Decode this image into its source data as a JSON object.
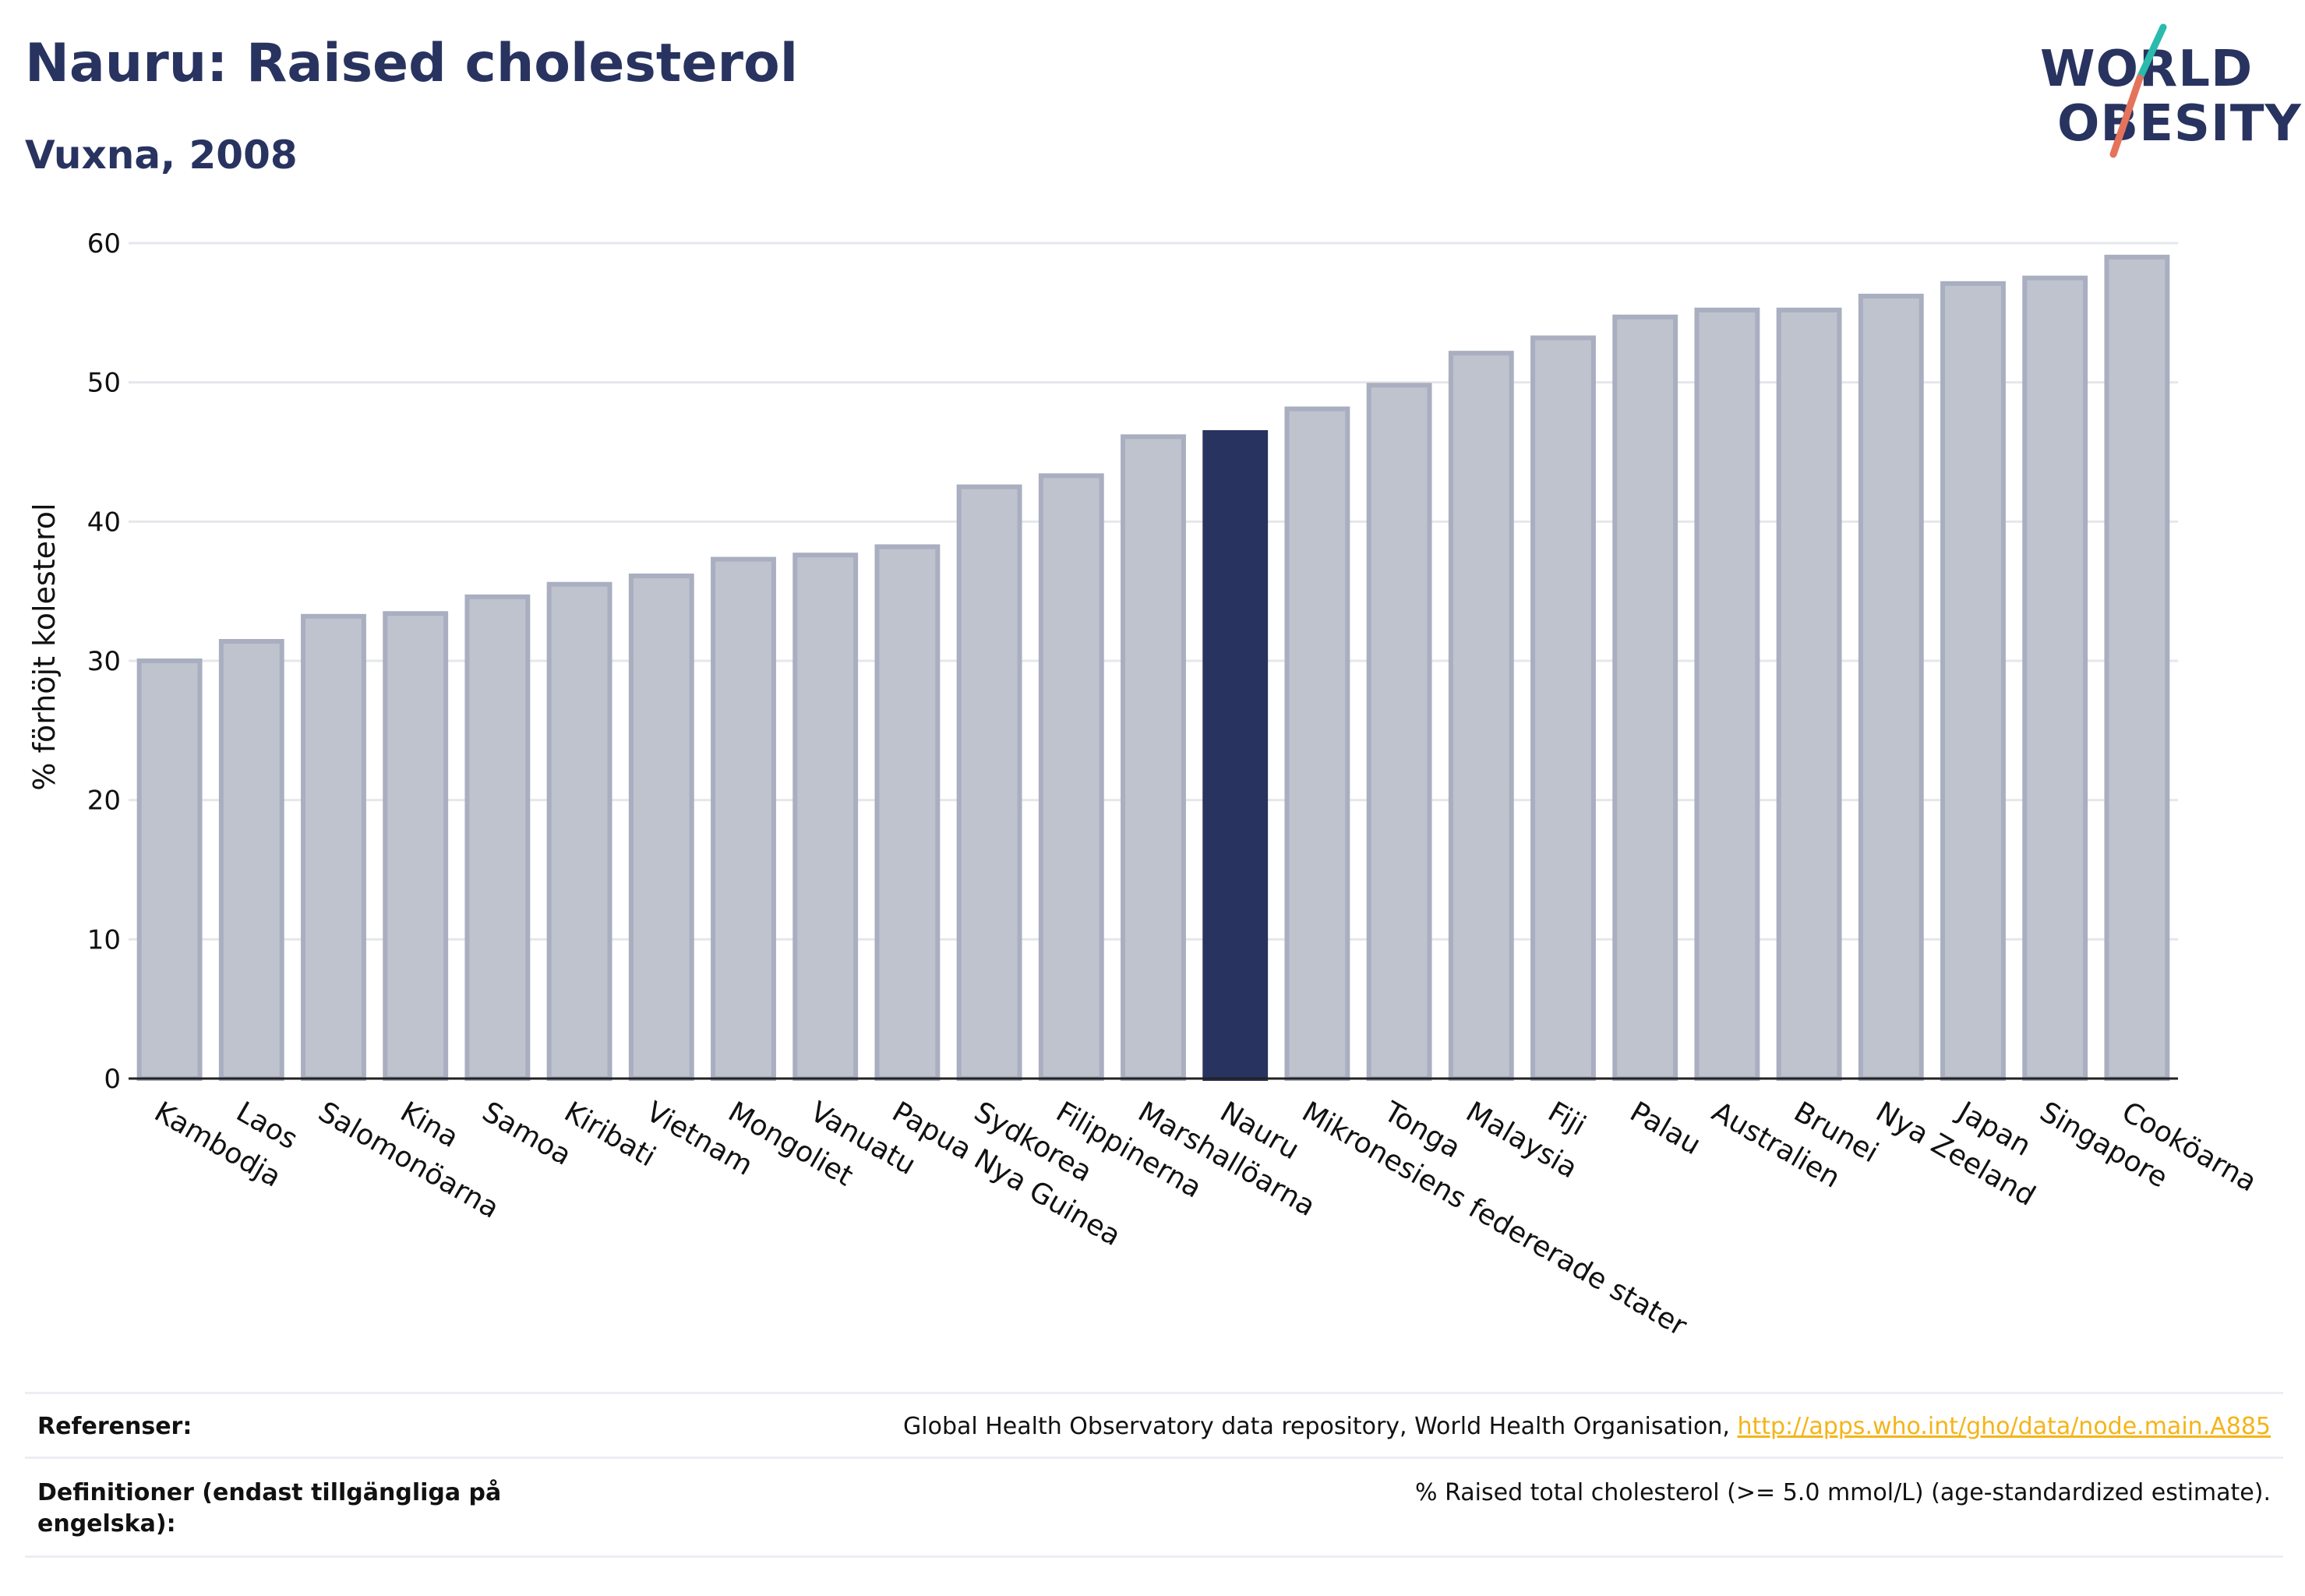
{
  "header": {
    "title": "Nauru: Raised cholesterol",
    "subtitle": "Vuxna, 2008"
  },
  "logo": {
    "line1": "WORLD",
    "line2": "OBESITY",
    "name": "world-obesity-logo"
  },
  "colors": {
    "bar_default": "#bfc3ce",
    "bar_border": "#a9aec0",
    "bar_highlight": "#283360",
    "text": "#283360",
    "link": "#f4b41a",
    "grid": "#e6e7ec"
  },
  "chart_data": {
    "type": "bar",
    "ylabel": "% förhöjt kolesterol",
    "ylim": [
      0,
      60
    ],
    "yticks": [
      0,
      10,
      20,
      30,
      40,
      50,
      60
    ],
    "grid": true,
    "highlight": "Nauru",
    "categories": [
      "Kambodja",
      "Laos",
      "Salomonöarna",
      "Kina",
      "Samoa",
      "Kiribati",
      "Vietnam",
      "Mongoliet",
      "Vanuatu",
      "Papua Nya Guinea",
      "Sydkorea",
      "Filippinerna",
      "Marshallöarna",
      "Nauru",
      "Mikronesiens federerade stater",
      "Tonga",
      "Malaysia",
      "Fiji",
      "Palau",
      "Australien",
      "Brunei",
      "Nya Zeeland",
      "Japan",
      "Singapore",
      "Cooköarna"
    ],
    "values": [
      30.0,
      31.4,
      33.2,
      33.4,
      34.6,
      35.5,
      36.1,
      37.3,
      37.6,
      38.2,
      42.5,
      43.3,
      46.1,
      46.4,
      48.1,
      49.8,
      52.1,
      53.2,
      54.7,
      55.2,
      55.2,
      56.2,
      57.1,
      57.5,
      59.0
    ]
  },
  "footer": {
    "references_label": "Referenser:",
    "references_text": "Global Health Observatory data repository, World Health Organisation, ",
    "references_link": "http://apps.who.int/gho/data/node.main.A885",
    "definitions_label_line1": "Definitioner (endast tillgängliga på",
    "definitions_label_line2": "engelska):",
    "definitions_text": "% Raised total cholesterol (>= 5.0 mmol/L) (age-standardized estimate)."
  }
}
